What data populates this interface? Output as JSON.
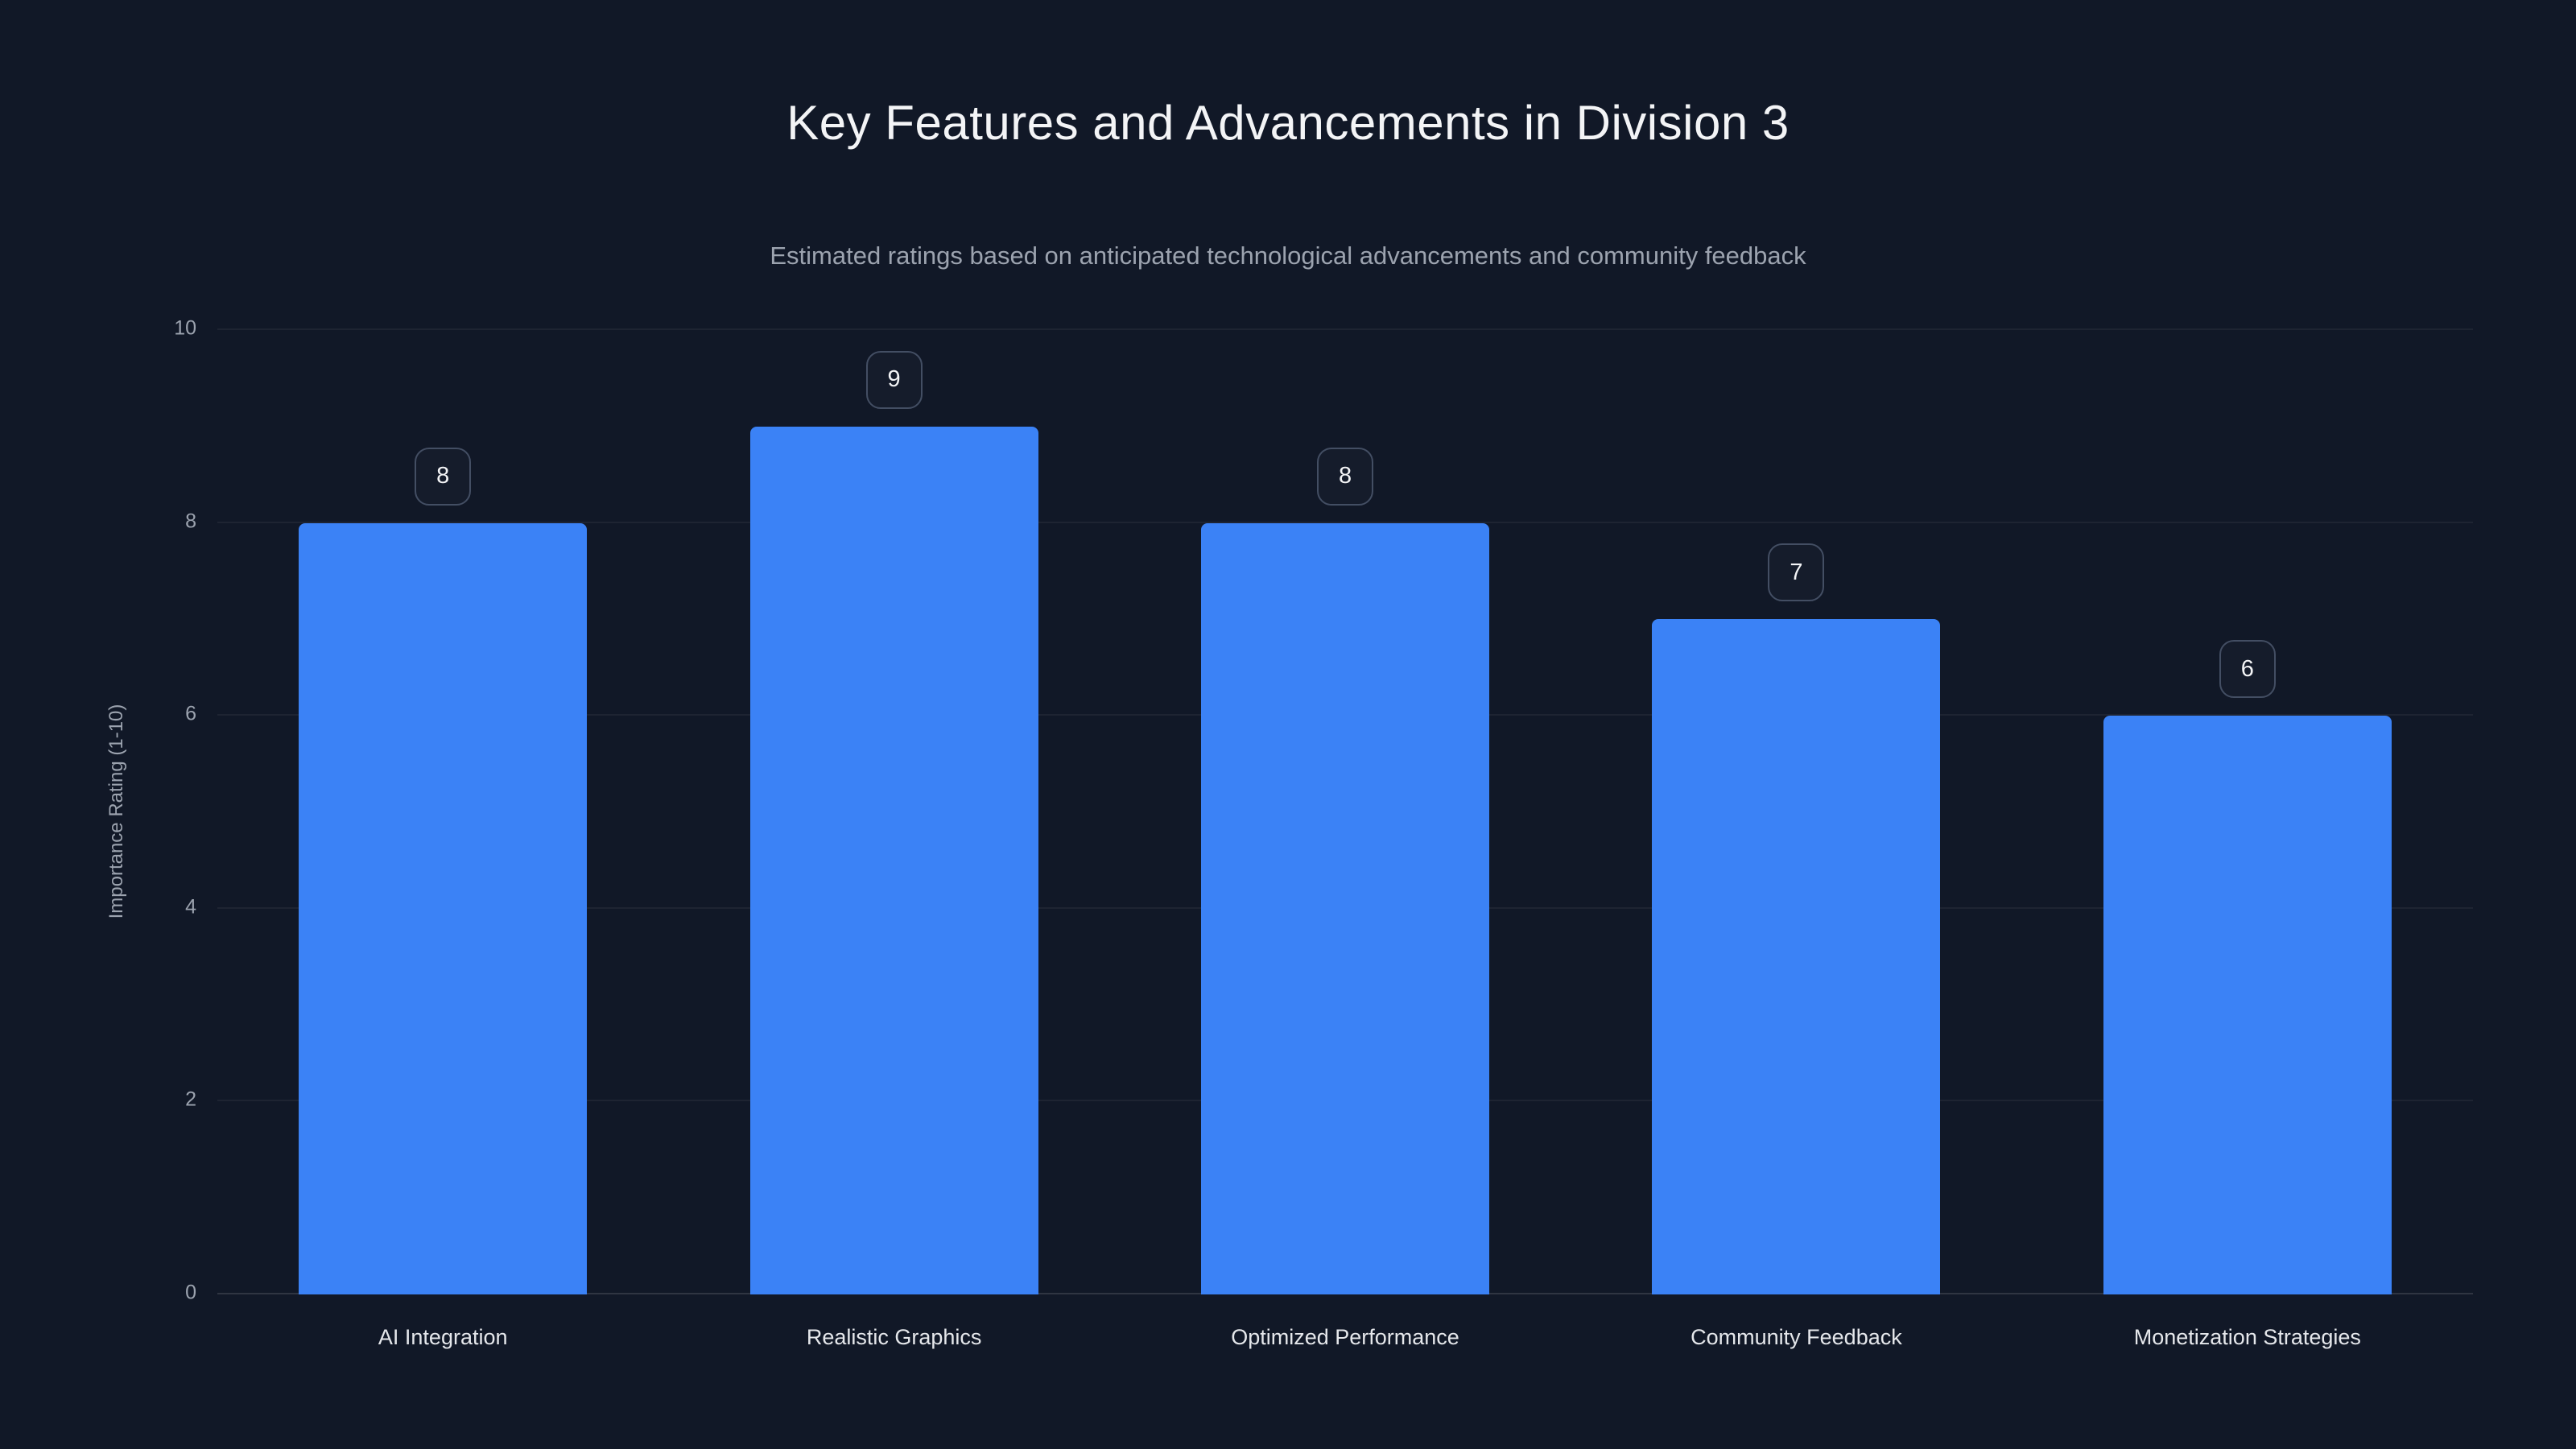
{
  "chart_data": {
    "type": "bar",
    "title": "Key Features and Advancements in Division 3",
    "subtitle": "Estimated ratings based on anticipated technological advancements and community feedback",
    "xlabel": "",
    "ylabel": "Importance Rating (1-10)",
    "categories": [
      "AI Integration",
      "Realistic Graphics",
      "Optimized Performance",
      "Community Feedback",
      "Monetization Strategies"
    ],
    "values": [
      8,
      9,
      8,
      7,
      6
    ],
    "ylim": [
      0,
      10
    ],
    "yticks": [
      0,
      2,
      4,
      6,
      8,
      10
    ],
    "grid": "horizontal",
    "legend": "none",
    "bar_color": "#3b82f6",
    "background_color": "#111827",
    "value_labels": [
      "8",
      "9",
      "8",
      "7",
      "6"
    ]
  }
}
